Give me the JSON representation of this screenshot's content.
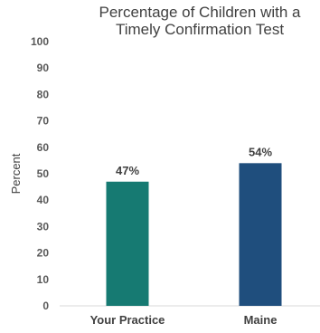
{
  "chart_data": {
    "type": "bar",
    "title_lines": [
      "Percentage of Children with a",
      "Timely Confirmation Test"
    ],
    "ylabel": "Percent",
    "xlabel": "",
    "categories": [
      "Your Practice",
      "Maine"
    ],
    "values": [
      47,
      54
    ],
    "data_labels": [
      "47%",
      "54%"
    ],
    "colors": [
      "#167a72",
      "#1f4e7d"
    ],
    "ylim": [
      0,
      100
    ],
    "yticks": [
      0,
      10,
      20,
      30,
      40,
      50,
      60,
      70,
      80,
      90,
      100
    ],
    "ytick_labels": [
      "0",
      "10",
      "20",
      "30",
      "40",
      "50",
      "60",
      "70",
      "80",
      "90",
      "100"
    ],
    "grid": false,
    "legend": "none"
  }
}
